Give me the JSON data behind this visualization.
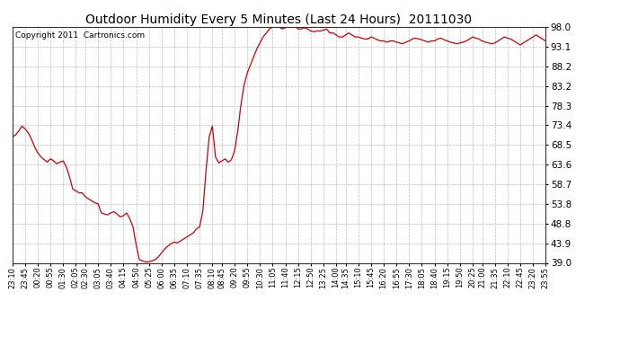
{
  "title": "Outdoor Humidity Every 5 Minutes (Last 24 Hours)  20111030",
  "copyright": "Copyright 2011  Cartronics.com",
  "yticks": [
    39.0,
    43.9,
    48.8,
    53.8,
    58.7,
    63.6,
    68.5,
    73.4,
    78.3,
    83.2,
    88.2,
    93.1,
    98.0
  ],
  "ylim": [
    39.0,
    98.0
  ],
  "line_color": "#cc0000",
  "bg_color": "#ffffff",
  "grid_color": "#bbbbbb",
  "x_labels": [
    "23:10",
    "23:45",
    "00:20",
    "00:55",
    "01:30",
    "02:05",
    "02:30",
    "03:05",
    "03:40",
    "04:15",
    "04:50",
    "05:25",
    "06:00",
    "06:35",
    "07:10",
    "07:35",
    "08:10",
    "08:45",
    "09:20",
    "09:55",
    "10:30",
    "11:05",
    "11:40",
    "12:15",
    "12:50",
    "13:25",
    "14:00",
    "14:35",
    "15:10",
    "15:45",
    "16:20",
    "16:55",
    "17:30",
    "18:05",
    "18:40",
    "19:15",
    "19:50",
    "20:25",
    "21:00",
    "21:35",
    "22:10",
    "22:45",
    "23:20",
    "23:55"
  ],
  "y_data": [
    70.5,
    71.0,
    72.0,
    73.2,
    72.5,
    71.5,
    70.0,
    68.0,
    66.5,
    65.5,
    64.8,
    64.2,
    65.0,
    64.5,
    63.8,
    64.2,
    64.5,
    63.0,
    60.5,
    57.5,
    57.0,
    56.5,
    56.5,
    55.5,
    55.0,
    54.5,
    54.0,
    53.8,
    51.5,
    51.2,
    51.0,
    51.5,
    51.8,
    51.2,
    50.5,
    50.8,
    51.5,
    50.0,
    48.0,
    43.5,
    39.8,
    39.5,
    39.2,
    39.3,
    39.5,
    39.8,
    40.5,
    41.5,
    42.5,
    43.2,
    43.8,
    44.2,
    44.0,
    44.5,
    45.0,
    45.5,
    46.0,
    46.5,
    47.5,
    48.0,
    52.0,
    62.0,
    70.5,
    73.2,
    65.5,
    64.0,
    64.5,
    65.0,
    64.2,
    64.8,
    67.0,
    72.0,
    78.5,
    83.5,
    86.5,
    88.5,
    90.5,
    92.5,
    94.0,
    95.5,
    96.5,
    97.5,
    98.0,
    98.2,
    98.0,
    97.5,
    97.8,
    98.5,
    98.5,
    98.2,
    97.5,
    97.5,
    97.8,
    97.5,
    97.0,
    96.8,
    97.0,
    97.0,
    97.2,
    97.5,
    96.5,
    96.5,
    96.0,
    95.5,
    95.5,
    96.0,
    96.5,
    96.0,
    95.5,
    95.5,
    95.2,
    95.0,
    95.0,
    95.5,
    95.2,
    94.8,
    94.5,
    94.5,
    94.2,
    94.5,
    94.5,
    94.2,
    94.0,
    93.8,
    94.2,
    94.5,
    95.0,
    95.2,
    95.0,
    94.8,
    94.5,
    94.2,
    94.5,
    94.5,
    95.0,
    95.2,
    94.8,
    94.5,
    94.2,
    94.0,
    93.8,
    94.0,
    94.2,
    94.5,
    95.0,
    95.5,
    95.2,
    95.0,
    94.5,
    94.2,
    94.0,
    93.8,
    94.0,
    94.5,
    95.0,
    95.5,
    95.2,
    95.0,
    94.5,
    94.0,
    93.5,
    94.0,
    94.5,
    95.0,
    95.5,
    96.0,
    95.5,
    95.0,
    94.5
  ]
}
